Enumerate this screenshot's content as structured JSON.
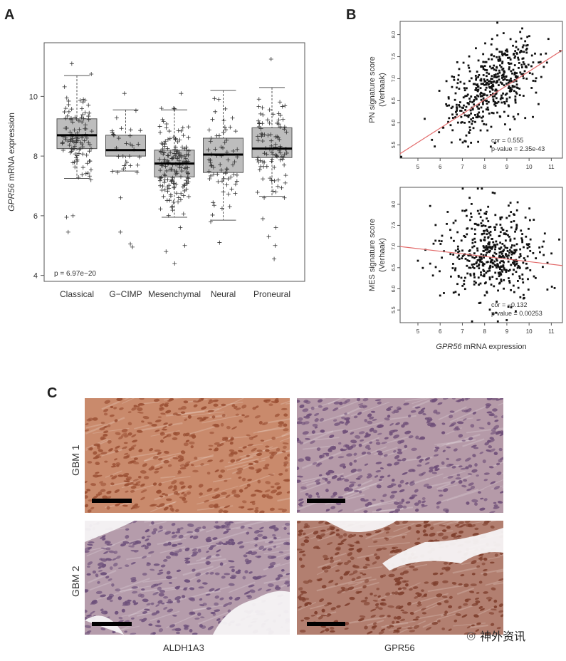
{
  "panels": {
    "a": "A",
    "b": "B",
    "c": "C"
  },
  "chart_data": [
    {
      "type": "box",
      "ylabel_italic": "GPR56",
      "ylabel_rest": " mRNA expression",
      "ylim": [
        3.8,
        11.8
      ],
      "yticks": [
        4,
        6,
        8,
        10
      ],
      "categories": [
        "Classical",
        "G−CIMP",
        "Mesenchymal",
        "Neural",
        "Proneural"
      ],
      "boxes": [
        {
          "q1": 8.25,
          "median": 8.7,
          "q3": 9.25,
          "lo": 7.25,
          "hi": 10.7,
          "n": 110
        },
        {
          "q1": 8.0,
          "median": 8.2,
          "q3": 8.7,
          "lo": 7.5,
          "hi": 9.55,
          "n": 30
        },
        {
          "q1": 7.3,
          "median": 7.75,
          "q3": 8.2,
          "lo": 5.95,
          "hi": 9.55,
          "n": 170
        },
        {
          "q1": 7.45,
          "median": 8.05,
          "q3": 8.6,
          "lo": 5.85,
          "hi": 10.2,
          "n": 70
        },
        {
          "q1": 7.95,
          "median": 8.25,
          "q3": 8.95,
          "lo": 6.65,
          "hi": 10.3,
          "n": 95
        }
      ],
      "outliers": [
        [
          {
            "x": 0,
            "y": 11.1
          },
          {
            "x": 0,
            "y": 5.95
          },
          {
            "x": 0,
            "y": 6.0
          },
          {
            "x": 0,
            "y": 5.45
          }
        ],
        [
          {
            "x": 1,
            "y": 10.1
          },
          {
            "x": 1,
            "y": 6.6
          },
          {
            "x": 1,
            "y": 5.45
          },
          {
            "x": 1,
            "y": 5.05
          },
          {
            "x": 1,
            "y": 4.95
          }
        ],
        [
          {
            "x": 2,
            "y": 10.1
          },
          {
            "x": 2,
            "y": 5.6
          },
          {
            "x": 2,
            "y": 4.8
          },
          {
            "x": 2,
            "y": 4.4
          },
          {
            "x": 2,
            "y": 5.0
          }
        ],
        [
          {
            "x": 3,
            "y": 5.1
          }
        ],
        [
          {
            "x": 4,
            "y": 11.25
          },
          {
            "x": 4,
            "y": 5.9
          },
          {
            "x": 4,
            "y": 5.6
          },
          {
            "x": 4,
            "y": 5.0
          },
          {
            "x": 4,
            "y": 4.55
          },
          {
            "x": 4,
            "y": 5.3
          }
        ]
      ],
      "annotation": "p = 6.97e−20"
    },
    {
      "type": "scatter",
      "ylabel": [
        "PN signature score",
        "(Verhaak)"
      ],
      "xlim": [
        4.2,
        11.5
      ],
      "ylim": [
        5.2,
        8.3
      ],
      "xticks": [
        5,
        6,
        7,
        8,
        9,
        10,
        11
      ],
      "yticks": [
        "5.5",
        "6.0",
        "6.5",
        "7.0",
        "7.5",
        "8.0"
      ],
      "yticks_values": [
        5.5,
        6.0,
        6.5,
        7.0,
        7.5,
        8.0
      ],
      "fit": {
        "x": [
          4.2,
          11.5
        ],
        "y": [
          5.3,
          7.65
        ]
      },
      "cor": "cor = 0.555",
      "pvalue": "p-value = 2.35e-43",
      "n_points": 500,
      "correlation": 0.555
    },
    {
      "type": "scatter",
      "ylabel": [
        "MES signature score",
        "(Verhaak)"
      ],
      "xlabel_italic": "GPR56",
      "xlabel_rest": " mRNA expression",
      "xlim": [
        4.2,
        11.5
      ],
      "ylim": [
        5.2,
        8.4
      ],
      "xticks": [
        5,
        6,
        7,
        8,
        9,
        10,
        11
      ],
      "yticks": [
        "5.5",
        "6.0",
        "6.5",
        "7.0",
        "7.5",
        "8.0"
      ],
      "yticks_values": [
        5.5,
        6.0,
        6.5,
        7.0,
        7.5,
        8.0
      ],
      "fit": {
        "x": [
          4.2,
          11.5
        ],
        "y": [
          7.0,
          6.55
        ]
      },
      "cor": "cor = −0.132",
      "pvalue": "p value = 0.00253",
      "n_points": 500,
      "correlation": -0.132
    }
  ],
  "histology": {
    "rows": [
      "GBM 1",
      "GBM 2"
    ],
    "columns": [
      "ALDH1A3",
      "GPR56"
    ],
    "tiles": [
      {
        "row": 0,
        "col": 0,
        "base": "#c98a6c",
        "cells": "#9a4f33",
        "stain": "strong brown"
      },
      {
        "row": 0,
        "col": 1,
        "base": "#b59aa8",
        "cells": "#6e4e78",
        "stain": "weak"
      },
      {
        "row": 1,
        "col": 0,
        "base": "#b59cab",
        "cells": "#6c4f7a",
        "stain": "weak"
      },
      {
        "row": 1,
        "col": 1,
        "base": "#b27f70",
        "cells": "#7e3e2c",
        "stain": "strong brown"
      }
    ]
  },
  "watermark": "神外资讯"
}
